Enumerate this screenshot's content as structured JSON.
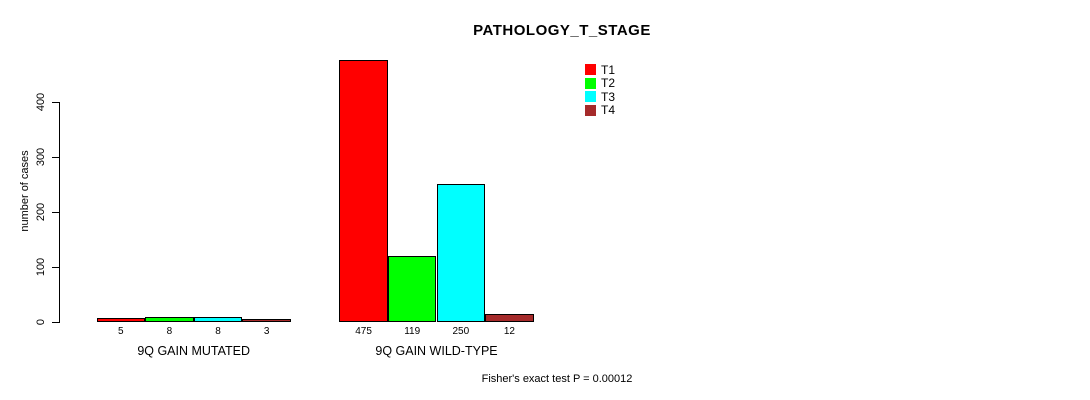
{
  "title": "PATHOLOGY_T_STAGE",
  "ylabel": "number of cases",
  "footer": "Fisher's exact test P = 0.00012",
  "chart_data": {
    "type": "bar",
    "title": "PATHOLOGY_T_STAGE",
    "xlabel": "",
    "ylabel": "number of cases",
    "categories": [
      "9Q GAIN MUTATED",
      "9Q GAIN WILD-TYPE"
    ],
    "series": [
      {
        "name": "T1",
        "color": "#ff0000",
        "values": [
          5,
          475
        ]
      },
      {
        "name": "T2",
        "color": "#00ff00",
        "values": [
          8,
          119
        ]
      },
      {
        "name": "T3",
        "color": "#00ffff",
        "values": [
          8,
          250
        ]
      },
      {
        "name": "T4",
        "color": "#a52a2a",
        "values": [
          3,
          12
        ]
      }
    ],
    "yticks": [
      0,
      100,
      200,
      300,
      400
    ],
    "ylim": [
      0,
      400
    ],
    "grid": false,
    "legend_position": "top-right-inside",
    "bar_value_labels": true,
    "annotation": "Fisher's exact test P = 0.00012"
  }
}
